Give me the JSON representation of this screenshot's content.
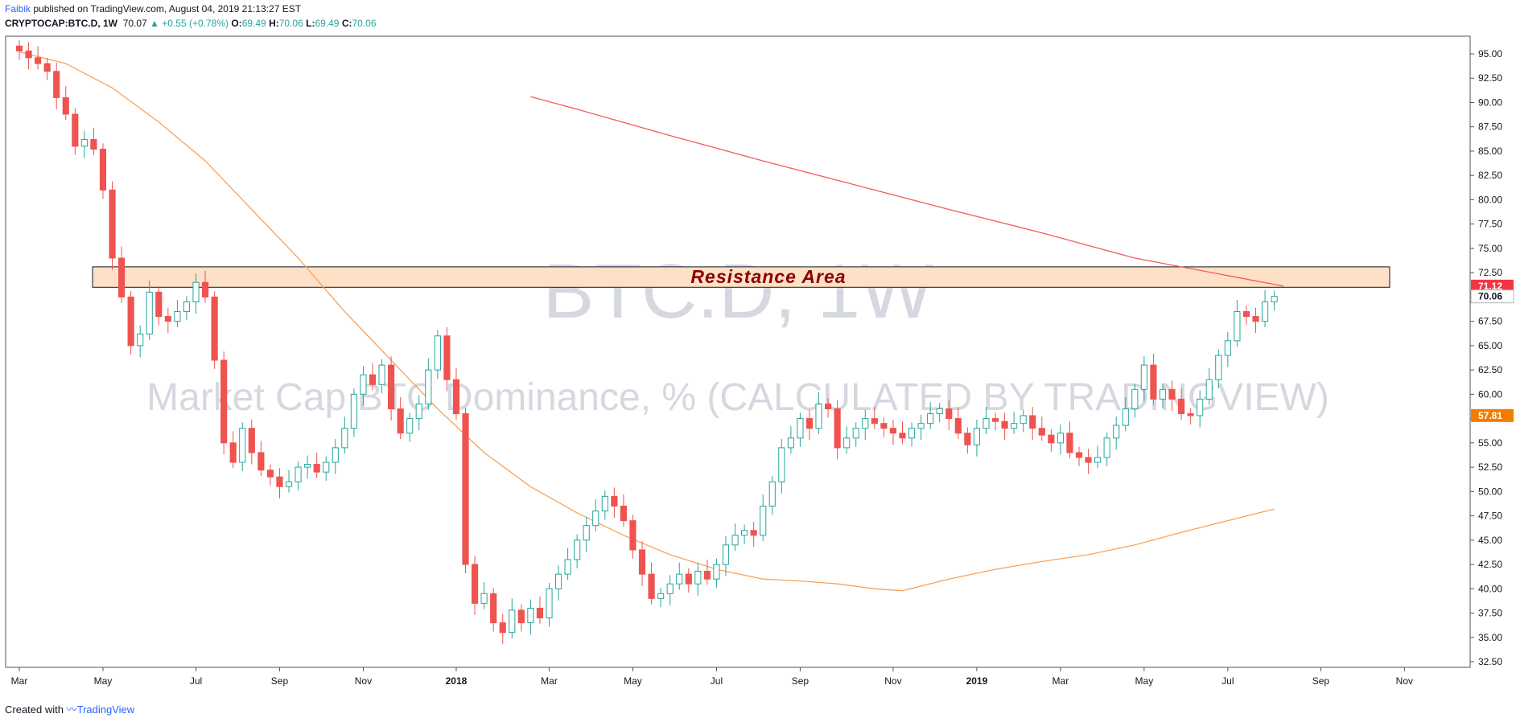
{
  "header": {
    "author": "Faibik",
    "published": "published on TradingView.com, August 04, 2019 21:13:27 EST",
    "symbol": "CRYPTOCAP:BTC.D, 1W",
    "last": "70.07",
    "change": "▲ +0.55 (+0.78%)",
    "o_label": "O:",
    "o_val": "69.49",
    "h_label": "H:",
    "h_val": "70.06",
    "l_label": "L:",
    "l_val": "69.49",
    "c_label": "C:",
    "c_val": "70.06"
  },
  "footer": {
    "created": "Created with",
    "brand": "TradingView"
  },
  "colors": {
    "up": "#26a69a",
    "down": "#ef5350",
    "ma_orange": "#f7a35c",
    "ma_red": "#f45b5b",
    "zone": "#fde0c5",
    "zone_text": "#8b0000"
  },
  "chart_data": {
    "type": "candlestick",
    "watermark_title": "BTC.D, 1W",
    "watermark_subtitle": "Market Cap BTC Dominance, % (CALCULATED BY TRADINGVIEW)",
    "annotation": {
      "text": "Resistance Area",
      "low": 71.0,
      "high": 73.1
    },
    "ylim": [
      32.5,
      95.0
    ],
    "yticks": [
      "95.00",
      "92.50",
      "90.00",
      "87.50",
      "85.00",
      "82.50",
      "80.00",
      "77.50",
      "75.00",
      "72.50",
      "70.00",
      "67.50",
      "65.00",
      "62.50",
      "60.00",
      "57.50",
      "55.00",
      "52.50",
      "50.00",
      "47.50",
      "45.00",
      "42.50",
      "40.00",
      "37.50",
      "35.00",
      "32.50"
    ],
    "xlim_weeks": [
      -1,
      164
    ],
    "xticks": [
      {
        "label": "Mar",
        "week": 0
      },
      {
        "label": "May",
        "week": 9
      },
      {
        "label": "Jul",
        "week": 19
      },
      {
        "label": "Sep",
        "week": 28
      },
      {
        "label": "Nov",
        "week": 37
      },
      {
        "label": "2018",
        "week": 47
      },
      {
        "label": "Mar",
        "week": 57
      },
      {
        "label": "May",
        "week": 66
      },
      {
        "label": "Jul",
        "week": 75
      },
      {
        "label": "Sep",
        "week": 84
      },
      {
        "label": "Nov",
        "week": 94
      },
      {
        "label": "2019",
        "week": 103
      },
      {
        "label": "Mar",
        "week": 112
      },
      {
        "label": "May",
        "week": 121
      },
      {
        "label": "Jul",
        "week": 130
      },
      {
        "label": "Sep",
        "week": 140
      },
      {
        "label": "Nov",
        "week": 149
      }
    ],
    "price_labels": [
      {
        "text": "71.12",
        "value": 71.12,
        "color": "#f23645"
      },
      {
        "text": "70.06",
        "value": 70.06,
        "color": "#ffffff"
      },
      {
        "text": "57.81",
        "value": 57.81,
        "color": "#f57c00"
      }
    ],
    "closes": [
      95.3,
      94.6,
      94.0,
      93.2,
      90.5,
      88.8,
      85.5,
      86.2,
      85.2,
      81.0,
      74.0,
      70.0,
      65.0,
      66.2,
      70.5,
      68.0,
      67.5,
      68.5,
      69.5,
      71.5,
      70.0,
      63.5,
      55.0,
      53.0,
      56.5,
      54.0,
      52.2,
      51.5,
      50.5,
      51.0,
      52.5,
      52.8,
      52.0,
      53.0,
      54.5,
      56.5,
      60.0,
      62.0,
      61.0,
      63.0,
      58.5,
      56.0,
      57.5,
      59.0,
      62.5,
      66.0,
      61.5,
      58.0,
      42.5,
      38.5,
      39.5,
      36.5,
      35.5,
      37.8,
      36.5,
      38.0,
      37.0,
      40.0,
      41.5,
      43.0,
      45.0,
      46.5,
      48.0,
      49.5,
      48.5,
      47.0,
      44.0,
      41.5,
      39.0,
      39.5,
      40.5,
      41.5,
      40.5,
      41.8,
      41.0,
      42.5,
      44.5,
      45.5,
      46.0,
      45.5,
      48.5,
      51.0,
      54.5,
      55.5,
      57.5,
      56.5,
      59.0,
      58.5,
      54.5,
      55.5,
      56.5,
      57.5,
      57.0,
      56.5,
      56.0,
      55.5,
      56.5,
      57.0,
      58.0,
      58.5,
      57.5,
      56.0,
      54.8,
      56.5,
      57.5,
      57.2,
      56.5,
      57.0,
      57.8,
      56.5,
      55.8,
      55.0,
      56.0,
      54.0,
      53.5,
      53.0,
      53.5,
      55.5,
      56.8,
      58.5,
      60.5,
      63.0,
      59.5,
      60.5,
      59.5,
      58.0,
      57.8,
      59.5,
      61.5,
      64.0,
      65.5,
      68.5,
      68.0,
      67.5,
      69.5,
      70.06
    ],
    "ma_fast": [
      {
        "week": 0,
        "value": 95.2
      },
      {
        "week": 5,
        "value": 94.0
      },
      {
        "week": 10,
        "value": 91.5
      },
      {
        "week": 15,
        "value": 88.0
      },
      {
        "week": 20,
        "value": 84.0
      },
      {
        "week": 25,
        "value": 79.0
      },
      {
        "week": 30,
        "value": 74.0
      },
      {
        "week": 35,
        "value": 68.5
      },
      {
        "week": 40,
        "value": 63.5
      },
      {
        "week": 45,
        "value": 58.5
      },
      {
        "week": 50,
        "value": 54.0
      },
      {
        "week": 55,
        "value": 50.5
      },
      {
        "week": 60,
        "value": 47.8
      },
      {
        "week": 65,
        "value": 45.5
      },
      {
        "week": 70,
        "value": 43.5
      },
      {
        "week": 75,
        "value": 42.0
      },
      {
        "week": 80,
        "value": 41.0
      },
      {
        "week": 84,
        "value": 40.8
      },
      {
        "week": 88,
        "value": 40.5
      },
      {
        "week": 92,
        "value": 40.0
      },
      {
        "week": 95,
        "value": 39.8
      },
      {
        "week": 100,
        "value": 41.0
      },
      {
        "week": 105,
        "value": 42.0
      },
      {
        "week": 110,
        "value": 42.8
      },
      {
        "week": 115,
        "value": 43.5
      },
      {
        "week": 120,
        "value": 44.5
      },
      {
        "week": 125,
        "value": 45.8
      },
      {
        "week": 130,
        "value": 47.0
      },
      {
        "week": 135,
        "value": 48.2
      }
    ],
    "ma_slow": [
      {
        "week": 55,
        "value": 90.6
      },
      {
        "week": 60,
        "value": 89.3
      },
      {
        "week": 70,
        "value": 86.6
      },
      {
        "week": 80,
        "value": 84.0
      },
      {
        "week": 90,
        "value": 81.5
      },
      {
        "week": 100,
        "value": 79.0
      },
      {
        "week": 110,
        "value": 76.6
      },
      {
        "week": 120,
        "value": 74.0
      },
      {
        "week": 130,
        "value": 72.2
      },
      {
        "week": 136,
        "value": 71.12
      }
    ]
  }
}
